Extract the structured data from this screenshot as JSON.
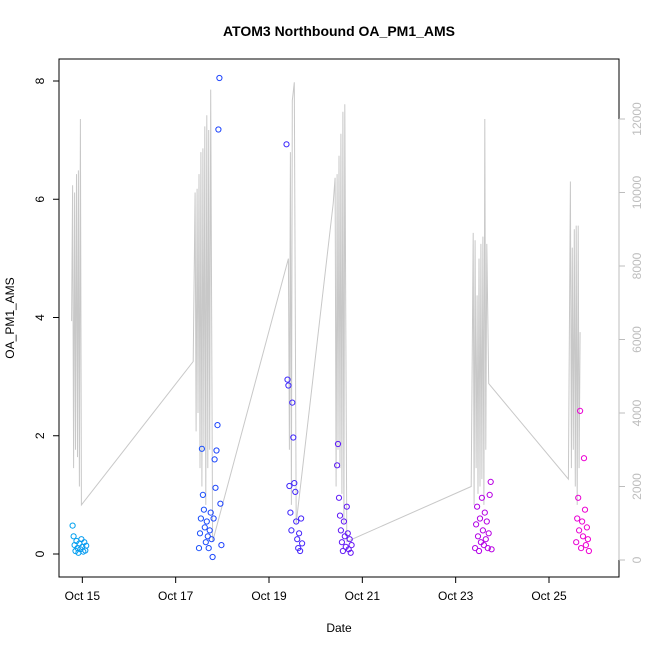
{
  "chart_data": {
    "type": "scatter",
    "title": "ATOM3 Northbound OA_PM1_AMS",
    "xlabel": "Date",
    "ylabel": "OA_PM1_AMS",
    "y2label": "",
    "xlim": [
      "2016-10-14T12:00",
      "2016-10-26T12:00"
    ],
    "ylim": [
      0,
      8
    ],
    "y2lim": [
      0,
      12000
    ],
    "x_ticks": [
      {
        "value": "2016-10-15",
        "label": "Oct 15"
      },
      {
        "value": "2016-10-17",
        "label": "Oct 17"
      },
      {
        "value": "2016-10-19",
        "label": "Oct 19"
      },
      {
        "value": "2016-10-21",
        "label": "Oct 21"
      },
      {
        "value": "2016-10-23",
        "label": "Oct 23"
      },
      {
        "value": "2016-10-25",
        "label": "Oct 25"
      }
    ],
    "y_ticks": [
      "0",
      "2",
      "4",
      "6",
      "8"
    ],
    "y2_ticks": [
      "0",
      "2000",
      "4000",
      "6000",
      "8000",
      "10000",
      "12000"
    ],
    "grid": false,
    "colors": {
      "scatter_start": "#00aaee",
      "scatter_mid": "#2233ff",
      "scatter_mid2": "#9900ee",
      "scatter_end": "#ff00cc",
      "secondary_line": "#c8c8c8",
      "axis": "#000000",
      "right_axis": "#bdbdbd"
    },
    "segments": [
      {
        "date": "Oct 14–15",
        "points": [
          [
            "2016-10-14T19:00",
            0.48
          ],
          [
            "2016-10-14T19:30",
            0.3
          ],
          [
            "2016-10-14T20:00",
            0.15
          ],
          [
            "2016-10-14T20:30",
            0.05
          ],
          [
            "2016-10-14T21:00",
            0.22
          ],
          [
            "2016-10-14T21:30",
            0.1
          ],
          [
            "2016-10-14T22:00",
            0.02
          ],
          [
            "2016-10-14T22:30",
            0.18
          ],
          [
            "2016-10-14T23:00",
            0.08
          ],
          [
            "2016-10-14T23:30",
            0.25
          ],
          [
            "2016-10-15T00:00",
            0.12
          ],
          [
            "2016-10-15T00:30",
            0.04
          ],
          [
            "2016-10-15T01:00",
            0.2
          ],
          [
            "2016-10-15T01:30",
            0.06
          ],
          [
            "2016-10-15T02:00",
            0.14
          ]
        ]
      },
      {
        "date": "Oct 17",
        "points": [
          [
            "2016-10-17T12:00",
            0.1
          ],
          [
            "2016-10-17T12:30",
            0.35
          ],
          [
            "2016-10-17T13:00",
            0.6
          ],
          [
            "2016-10-17T13:30",
            1.78
          ],
          [
            "2016-10-17T14:00",
            1.0
          ],
          [
            "2016-10-17T14:30",
            0.75
          ],
          [
            "2016-10-17T15:00",
            0.45
          ],
          [
            "2016-10-17T15:30",
            0.2
          ],
          [
            "2016-10-17T16:00",
            0.55
          ],
          [
            "2016-10-17T16:30",
            0.3
          ],
          [
            "2016-10-17T17:00",
            0.1
          ],
          [
            "2016-10-17T17:30",
            0.4
          ],
          [
            "2016-10-17T18:00",
            0.7
          ],
          [
            "2016-10-17T18:30",
            0.25
          ],
          [
            "2016-10-17T19:00",
            -0.05
          ],
          [
            "2016-10-17T19:30",
            0.6
          ],
          [
            "2016-10-17T20:00",
            1.6
          ],
          [
            "2016-10-17T20:30",
            1.12
          ],
          [
            "2016-10-17T21:00",
            1.75
          ],
          [
            "2016-10-17T21:30",
            2.18
          ],
          [
            "2016-10-17T22:00",
            7.18
          ],
          [
            "2016-10-17T22:30",
            8.05
          ],
          [
            "2016-10-17T23:00",
            0.85
          ],
          [
            "2016-10-17T23:30",
            0.15
          ]
        ]
      },
      {
        "date": "Oct 19",
        "points": [
          [
            "2016-10-19T09:00",
            6.93
          ],
          [
            "2016-10-19T09:30",
            2.95
          ],
          [
            "2016-10-19T10:00",
            2.85
          ],
          [
            "2016-10-19T10:30",
            1.15
          ],
          [
            "2016-10-19T11:00",
            0.7
          ],
          [
            "2016-10-19T11:30",
            0.4
          ],
          [
            "2016-10-19T12:00",
            2.56
          ],
          [
            "2016-10-19T12:30",
            1.97
          ],
          [
            "2016-10-19T13:00",
            1.2
          ],
          [
            "2016-10-19T13:30",
            1.05
          ],
          [
            "2016-10-19T14:00",
            0.55
          ],
          [
            "2016-10-19T14:30",
            0.25
          ],
          [
            "2016-10-19T15:00",
            0.1
          ],
          [
            "2016-10-19T15:30",
            0.35
          ],
          [
            "2016-10-19T16:00",
            0.05
          ],
          [
            "2016-10-19T16:30",
            0.6
          ],
          [
            "2016-10-19T17:00",
            0.18
          ]
        ]
      },
      {
        "date": "Oct 20–21",
        "points": [
          [
            "2016-10-20T11:00",
            1.5
          ],
          [
            "2016-10-20T11:30",
            1.86
          ],
          [
            "2016-10-20T12:00",
            0.95
          ],
          [
            "2016-10-20T12:30",
            0.65
          ],
          [
            "2016-10-20T13:00",
            0.4
          ],
          [
            "2016-10-20T13:30",
            0.2
          ],
          [
            "2016-10-20T14:00",
            0.05
          ],
          [
            "2016-10-20T14:30",
            0.55
          ],
          [
            "2016-10-20T15:00",
            0.3
          ],
          [
            "2016-10-20T15:30",
            0.12
          ],
          [
            "2016-10-20T16:00",
            0.8
          ],
          [
            "2016-10-20T16:30",
            0.35
          ],
          [
            "2016-10-20T17:00",
            0.08
          ],
          [
            "2016-10-20T17:30",
            0.25
          ],
          [
            "2016-10-20T18:00",
            0.02
          ],
          [
            "2016-10-20T18:30",
            0.15
          ]
        ]
      },
      {
        "date": "Oct 23",
        "points": [
          [
            "2016-10-23T10:00",
            0.1
          ],
          [
            "2016-10-23T10:30",
            0.5
          ],
          [
            "2016-10-23T11:00",
            0.8
          ],
          [
            "2016-10-23T11:30",
            0.3
          ],
          [
            "2016-10-23T12:00",
            0.05
          ],
          [
            "2016-10-23T12:30",
            0.6
          ],
          [
            "2016-10-23T13:00",
            0.2
          ],
          [
            "2016-10-23T13:30",
            0.95
          ],
          [
            "2016-10-23T14:00",
            0.4
          ],
          [
            "2016-10-23T14:30",
            0.15
          ],
          [
            "2016-10-23T15:00",
            0.7
          ],
          [
            "2016-10-23T15:30",
            0.25
          ],
          [
            "2016-10-23T16:00",
            0.55
          ],
          [
            "2016-10-23T16:30",
            0.1
          ],
          [
            "2016-10-23T17:00",
            0.35
          ],
          [
            "2016-10-23T17:30",
            1.0
          ],
          [
            "2016-10-23T18:00",
            1.22
          ],
          [
            "2016-10-23T18:30",
            0.08
          ]
        ]
      },
      {
        "date": "Oct 25",
        "points": [
          [
            "2016-10-25T14:00",
            0.2
          ],
          [
            "2016-10-25T14:30",
            0.6
          ],
          [
            "2016-10-25T15:00",
            0.95
          ],
          [
            "2016-10-25T15:30",
            0.4
          ],
          [
            "2016-10-25T16:00",
            2.42
          ],
          [
            "2016-10-25T16:30",
            0.1
          ],
          [
            "2016-10-25T17:00",
            0.55
          ],
          [
            "2016-10-25T17:30",
            0.3
          ],
          [
            "2016-10-25T18:00",
            1.62
          ],
          [
            "2016-10-25T18:30",
            0.75
          ],
          [
            "2016-10-25T19:00",
            0.15
          ],
          [
            "2016-10-25T19:30",
            0.45
          ],
          [
            "2016-10-25T20:00",
            0.25
          ],
          [
            "2016-10-25T20:30",
            0.05
          ]
        ]
      }
    ],
    "secondary_series": {
      "axis": "right",
      "points": [
        [
          "2016-10-14T18:30",
          6500
        ],
        [
          "2016-10-14T19:00",
          10200
        ],
        [
          "2016-10-14T19:30",
          2500
        ],
        [
          "2016-10-14T20:00",
          10000
        ],
        [
          "2016-10-14T20:30",
          3000
        ],
        [
          "2016-10-14T21:00",
          10500
        ],
        [
          "2016-10-14T21:30",
          2800
        ],
        [
          "2016-10-14T22:00",
          10600
        ],
        [
          "2016-10-14T22:30",
          2000
        ],
        [
          "2016-10-14T23:00",
          12000
        ],
        [
          "2016-10-14T23:30",
          1500
        ],
        [
          "2016-10-17T09:00",
          5400
        ],
        [
          "2016-10-17T10:00",
          10000
        ],
        [
          "2016-10-17T10:30",
          3500
        ],
        [
          "2016-10-17T11:00",
          10100
        ],
        [
          "2016-10-17T11:30",
          4000
        ],
        [
          "2016-10-17T12:00",
          10500
        ],
        [
          "2016-10-17T12:30",
          2500
        ],
        [
          "2016-10-17T13:00",
          11100
        ],
        [
          "2016-10-17T13:30",
          2000
        ],
        [
          "2016-10-17T14:00",
          11200
        ],
        [
          "2016-10-17T14:30",
          3000
        ],
        [
          "2016-10-17T15:00",
          11800
        ],
        [
          "2016-10-17T15:30",
          1500
        ],
        [
          "2016-10-17T16:00",
          12100
        ],
        [
          "2016-10-17T16:30",
          2500
        ],
        [
          "2016-10-17T17:00",
          11700
        ],
        [
          "2016-10-17T17:30",
          3000
        ],
        [
          "2016-10-17T18:00",
          12800
        ],
        [
          "2016-10-17T19:00",
          500
        ],
        [
          "2016-10-19T10:00",
          8200
        ],
        [
          "2016-10-19T10:30",
          3000
        ],
        [
          "2016-10-19T11:00",
          11100
        ],
        [
          "2016-10-19T11:30",
          1500
        ],
        [
          "2016-10-19T12:00",
          12500
        ],
        [
          "2016-10-19T13:00",
          13000
        ],
        [
          "2016-10-19T14:00",
          1000
        ],
        [
          "2016-10-20T09:00",
          9700
        ],
        [
          "2016-10-20T10:00",
          10400
        ],
        [
          "2016-10-20T10:30",
          2000
        ],
        [
          "2016-10-20T11:00",
          10500
        ],
        [
          "2016-10-20T11:30",
          3000
        ],
        [
          "2016-10-20T12:00",
          11000
        ],
        [
          "2016-10-20T12:30",
          2500
        ],
        [
          "2016-10-20T13:00",
          11600
        ],
        [
          "2016-10-20T13:30",
          1800
        ],
        [
          "2016-10-20T14:00",
          12200
        ],
        [
          "2016-10-20T14:30",
          1000
        ],
        [
          "2016-10-20T15:00",
          12400
        ],
        [
          "2016-10-20T16:00",
          500
        ],
        [
          "2016-10-23T08:00",
          2000
        ],
        [
          "2016-10-23T09:00",
          8900
        ],
        [
          "2016-10-23T09:30",
          1500
        ],
        [
          "2016-10-23T10:00",
          8700
        ],
        [
          "2016-10-23T10:30",
          2500
        ],
        [
          "2016-10-23T11:00",
          7200
        ],
        [
          "2016-10-23T11:30",
          1800
        ],
        [
          "2016-10-23T12:00",
          8200
        ],
        [
          "2016-10-23T12:30",
          2000
        ],
        [
          "2016-10-23T13:00",
          8600
        ],
        [
          "2016-10-23T13:30",
          2200
        ],
        [
          "2016-10-23T14:00",
          8800
        ],
        [
          "2016-10-23T14:30",
          1500
        ],
        [
          "2016-10-23T15:00",
          12000
        ],
        [
          "2016-10-23T15:30",
          3000
        ],
        [
          "2016-10-23T16:00",
          8600
        ],
        [
          "2016-10-23T17:00",
          4800
        ],
        [
          "2016-10-25T10:00",
          2200
        ],
        [
          "2016-10-25T11:00",
          10300
        ],
        [
          "2016-10-25T11:30",
          2500
        ],
        [
          "2016-10-25T12:00",
          8500
        ],
        [
          "2016-10-25T12:30",
          3000
        ],
        [
          "2016-10-25T13:00",
          9000
        ],
        [
          "2016-10-25T13:30",
          2000
        ],
        [
          "2016-10-25T14:00",
          9100
        ],
        [
          "2016-10-25T14:30",
          1500
        ],
        [
          "2016-10-25T15:00",
          9100
        ],
        [
          "2016-10-25T15:30",
          2500
        ],
        [
          "2016-10-25T16:00",
          6200
        ]
      ]
    }
  }
}
